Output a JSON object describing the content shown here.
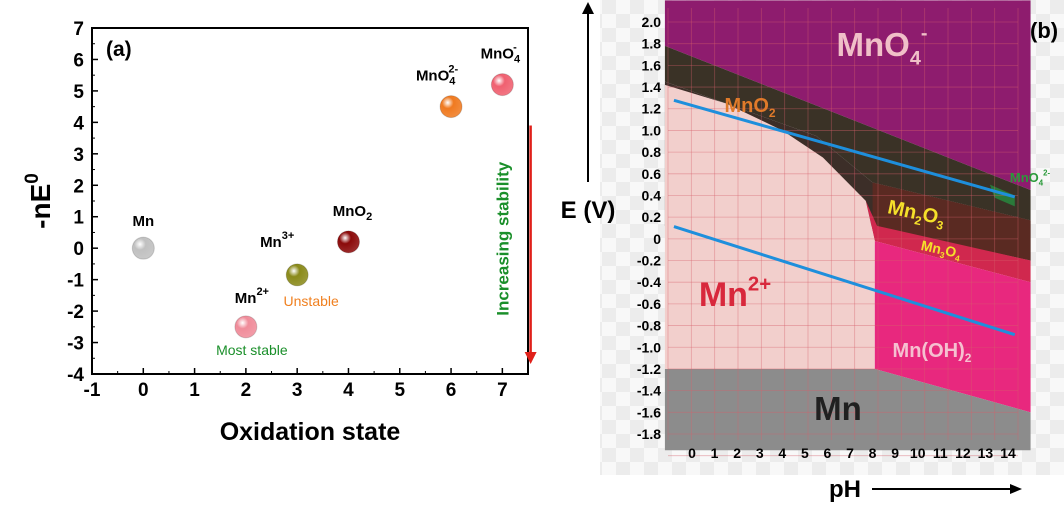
{
  "chart_data": [
    {
      "type": "scatter",
      "panel_label": "(a)",
      "xlabel": "Oxidation state",
      "ylabel": "-nE",
      "ylabel_sup": "0",
      "xlim": [
        -1,
        7.5
      ],
      "ylim": [
        -4,
        7
      ],
      "xticks": [
        "-1",
        "0",
        "1",
        "2",
        "3",
        "4",
        "5",
        "6",
        "7"
      ],
      "yticks": [
        "-4",
        "-3",
        "-2",
        "-1",
        "0",
        "1",
        "2",
        "3",
        "4",
        "5",
        "6",
        "7"
      ],
      "grid": false,
      "points": [
        {
          "species": "Mn",
          "label_main": "Mn",
          "label_sup": "",
          "label_sub": "",
          "x": 0,
          "y": 0,
          "color": "#c0c0c0"
        },
        {
          "species": "Mn2+",
          "label_main": "Mn",
          "label_sup": "2+",
          "label_sub": "",
          "x": 2,
          "y": -2.5,
          "color": "#f08c9a",
          "note": "Most stable",
          "note_color": "#1a8f2a"
        },
        {
          "species": "Mn3+",
          "label_main": "Mn",
          "label_sup": "3+",
          "label_sub": "",
          "x": 3,
          "y": -0.85,
          "color": "#8a8a1a",
          "note": "Unstable",
          "note_color": "#f08020"
        },
        {
          "species": "MnO2",
          "label_main": "MnO",
          "label_sup": "",
          "label_sub": "2",
          "x": 4,
          "y": 0.2,
          "color": "#8b0a0a"
        },
        {
          "species": "MnO4 2-",
          "label_main": "MnO",
          "label_sup": "2-",
          "label_sub": "4",
          "x": 6,
          "y": 4.5,
          "color": "#f07a20"
        },
        {
          "species": "MnO4-",
          "label_main": "MnO",
          "label_sup": "-",
          "label_sub": "4",
          "x": 7,
          "y": 5.2,
          "color": "#f06070"
        }
      ],
      "annotation": {
        "text": "Increasing stability",
        "color": "#1a8f2a",
        "arrow_color": "#e0201a"
      }
    },
    {
      "type": "area",
      "panel_label": "(b)",
      "xlabel": "pH",
      "ylabel": "E (V)",
      "xlim": [
        0,
        14
      ],
      "ylim": [
        -1.8,
        2.1
      ],
      "xticks": [
        "0",
        "1",
        "2",
        "3",
        "4",
        "5",
        "6",
        "7",
        "8",
        "9",
        "10",
        "11",
        "12",
        "13",
        "14"
      ],
      "yticks": [
        "2.0",
        "1.8",
        "1.6",
        "1.4",
        "1.2",
        "1.0",
        "0.8",
        "0.6",
        "0.4",
        "0.2",
        "0",
        "-0.2",
        "-0.4",
        "-0.6",
        "-0.8",
        "-1.0",
        "-1.2",
        "-1.4",
        "-1.6",
        "-1.8"
      ],
      "grid": true,
      "regions": [
        {
          "species": "MnO4-",
          "label_main": "MnO",
          "label_sub": "4",
          "label_sup": "-",
          "color": "#8e1c6e",
          "text_color": "#f0c0c8"
        },
        {
          "species": "MnO2",
          "label_main": "MnO",
          "label_sub": "2",
          "label_sup": "",
          "color": "#3a3226",
          "text_color": "#e07a2a"
        },
        {
          "species": "Mn2O3",
          "label_main": "Mn",
          "label_sub": "2",
          "label_mid": "O",
          "label_sub2": "3",
          "color": "#5a2a22",
          "text_color": "#f5e02a"
        },
        {
          "species": "Mn3O4",
          "label_main": "Mn",
          "label_sub": "3",
          "label_mid": "O",
          "label_sub2": "4",
          "color": "#d0284e",
          "text_color": "#f5e02a"
        },
        {
          "species": "Mn2+",
          "label_main": "Mn",
          "label_sup": "2+",
          "color": "#f2cfcc",
          "text_color": "#d8283c"
        },
        {
          "species": "Mn(OH)2",
          "label_main": "Mn(OH)",
          "label_sub": "2",
          "color": "#e8287e",
          "text_color": "#f5c0d0"
        },
        {
          "species": "Mn",
          "label_main": "Mn",
          "color": "#8c8c8c",
          "text_color": "#202020"
        },
        {
          "species": "MnO4 2-",
          "label_main": "MnO",
          "label_sub": "4",
          "label_sup": "2-",
          "color": "#2a7a3a",
          "text_color": "#2a9a3a"
        }
      ],
      "water_lines": [
        {
          "name": "O2/H2O",
          "e0": 1.23,
          "slope": -0.059,
          "color": "#1e8fdc"
        },
        {
          "name": "H2O/H2",
          "e0": 0.06,
          "slope": -0.066,
          "color": "#1e8fdc"
        }
      ]
    }
  ]
}
